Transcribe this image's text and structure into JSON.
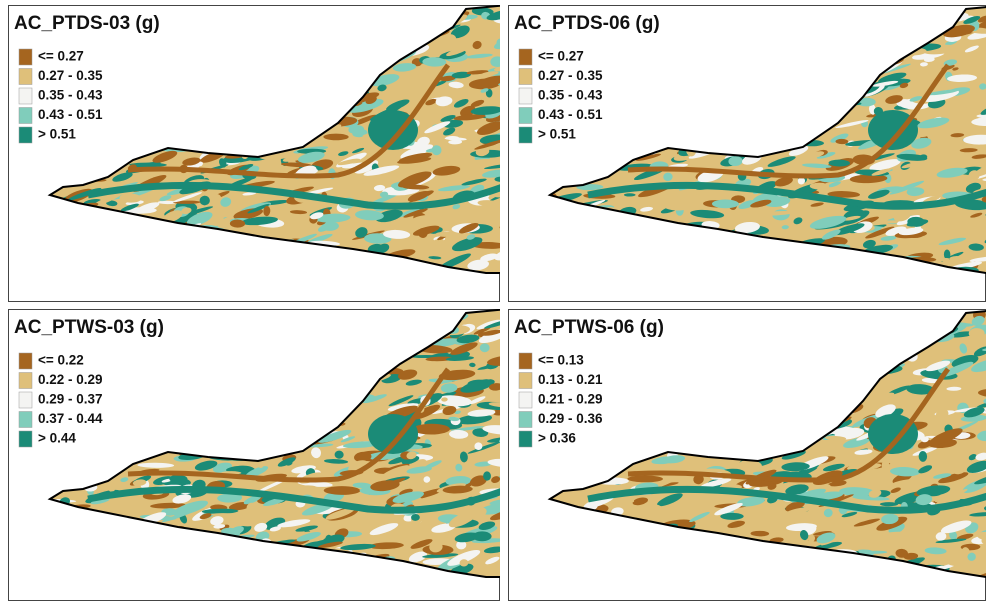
{
  "panels": [
    {
      "title": "AC_PTDS-03 (g)",
      "legend": [
        {
          "label": "<= 0.27",
          "color": "#a5651f"
        },
        {
          "label": "0.27 - 0.35",
          "color": "#dfc07a"
        },
        {
          "label": "0.35 - 0.43",
          "color": "#f4f4f2"
        },
        {
          "label": "0.43 - 0.51",
          "color": "#80cdbb"
        },
        {
          "label": "> 0.51",
          "color": "#1b8b77"
        }
      ]
    },
    {
      "title": "AC_PTDS-06 (g)",
      "legend": [
        {
          "label": "<= 0.27",
          "color": "#a5651f"
        },
        {
          "label": "0.27 - 0.35",
          "color": "#dfc07a"
        },
        {
          "label": "0.35 - 0.43",
          "color": "#f4f4f2"
        },
        {
          "label": "0.43 - 0.51",
          "color": "#80cdbb"
        },
        {
          "label": "> 0.51",
          "color": "#1b8b77"
        }
      ]
    },
    {
      "title": "AC_PTWS-03 (g)",
      "legend": [
        {
          "label": "<= 0.22",
          "color": "#a5651f"
        },
        {
          "label": "0.22 - 0.29",
          "color": "#dfc07a"
        },
        {
          "label": "0.29 - 0.37",
          "color": "#f4f4f2"
        },
        {
          "label": "0.37 - 0.44",
          "color": "#80cdbb"
        },
        {
          "label": "> 0.44",
          "color": "#1b8b77"
        }
      ]
    },
    {
      "title": "AC_PTWS-06 (g)",
      "legend": [
        {
          "label": "<= 0.13",
          "color": "#a5651f"
        },
        {
          "label": "0.13 - 0.21",
          "color": "#dfc07a"
        },
        {
          "label": "0.21 - 0.29",
          "color": "#f4f4f2"
        },
        {
          "label": "0.29 - 0.36",
          "color": "#80cdbb"
        },
        {
          "label": "> 0.36",
          "color": "#1b8b77"
        }
      ]
    }
  ]
}
